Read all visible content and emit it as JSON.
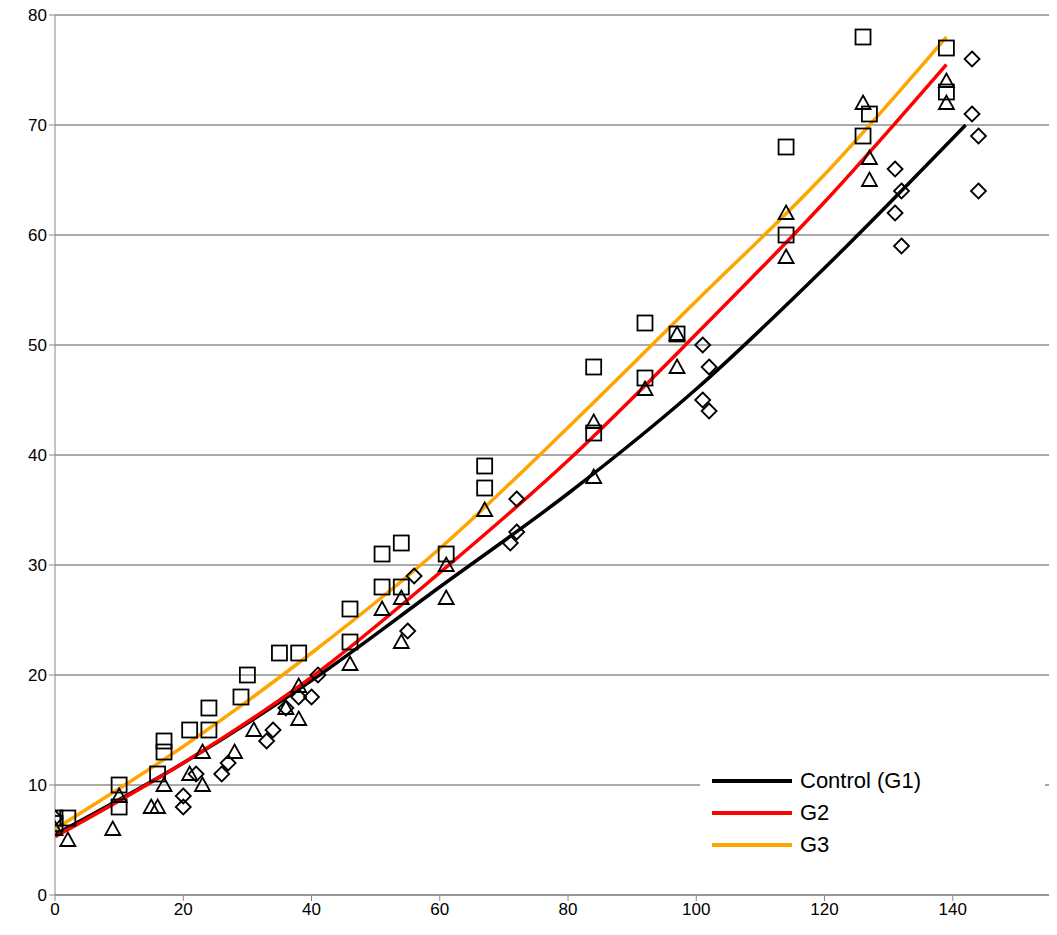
{
  "chart_data": {
    "type": "scatter",
    "xlim": [
      0,
      155
    ],
    "xticks": [
      0,
      20,
      40,
      60,
      80,
      100,
      120,
      140
    ],
    "ylim": [
      0,
      80
    ],
    "yticks": [
      0,
      10,
      20,
      30,
      40,
      50,
      60,
      70,
      80
    ],
    "grid": true,
    "legend": "lower right",
    "series": [
      {
        "name": "Control (G1)",
        "type": "line",
        "color": "#000000",
        "x": [
          0,
          20,
          40,
          60,
          80,
          100,
          120,
          142
        ],
        "values": [
          5.5,
          12,
          19.5,
          28,
          36.5,
          46,
          57,
          70
        ]
      },
      {
        "name": "G2",
        "type": "line",
        "color": "#ff0000",
        "x": [
          0,
          20,
          40,
          60,
          80,
          100,
          120,
          139
        ],
        "values": [
          5.3,
          12,
          19.8,
          29.3,
          39.5,
          51,
          63,
          75.5
        ]
      },
      {
        "name": "G3",
        "type": "line",
        "color": "#ffa500",
        "x": [
          0,
          20,
          40,
          60,
          80,
          100,
          120,
          139
        ],
        "values": [
          6,
          13.5,
          22,
          31.5,
          42.5,
          54,
          65.5,
          78
        ]
      },
      {
        "type": "scatter",
        "marker": "diamond",
        "color": "#000000",
        "x": [
          0,
          20,
          20,
          22,
          26,
          27,
          33,
          34,
          36,
          38,
          40,
          41,
          55,
          56,
          71,
          72,
          72,
          101,
          101,
          102,
          102,
          131,
          131,
          132,
          132,
          143,
          143,
          144,
          144
        ],
        "values": [
          7,
          8,
          9,
          11,
          11,
          12,
          14,
          15,
          17,
          18,
          18,
          20,
          24,
          29,
          32,
          33,
          36,
          45,
          50,
          44,
          48,
          62,
          66,
          59,
          64,
          76,
          71,
          64,
          69
        ]
      },
      {
        "type": "scatter",
        "marker": "triangle",
        "color": "#000000",
        "x": [
          0,
          2,
          9,
          10,
          15,
          16,
          17,
          21,
          23,
          23,
          28,
          31,
          36,
          38,
          38,
          46,
          51,
          54,
          54,
          61,
          61,
          67,
          84,
          84,
          92,
          97,
          97,
          114,
          114,
          126,
          127,
          127,
          139,
          139
        ],
        "values": [
          6,
          5,
          6,
          9,
          8,
          8,
          10,
          11,
          10,
          13,
          13,
          15,
          17,
          16,
          19,
          21,
          26,
          23,
          27,
          27,
          30,
          35,
          38,
          43,
          46,
          48,
          51,
          58,
          62,
          72,
          65,
          67,
          72,
          74
        ]
      },
      {
        "type": "scatter",
        "marker": "square",
        "color": "#000000",
        "x": [
          0,
          0,
          2,
          10,
          10,
          16,
          17,
          17,
          21,
          24,
          24,
          29,
          30,
          35,
          38,
          46,
          46,
          51,
          51,
          54,
          54,
          61,
          67,
          67,
          84,
          84,
          92,
          92,
          97,
          114,
          114,
          126,
          126,
          127,
          139,
          139
        ],
        "values": [
          6.5,
          7,
          7,
          8,
          10,
          11,
          13,
          14,
          15,
          15,
          17,
          18,
          20,
          22,
          22,
          23,
          26,
          28,
          31,
          32,
          28,
          31,
          37,
          39,
          42,
          48,
          47,
          52,
          51,
          60,
          68,
          69,
          78,
          71,
          73,
          77
        ]
      }
    ]
  }
}
